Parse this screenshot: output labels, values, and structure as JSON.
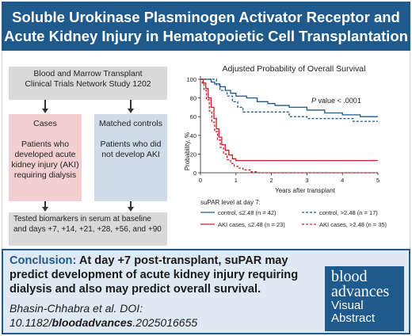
{
  "title": {
    "line1": "Soluble Urokinase Plasminogen Activator Receptor and",
    "line2": "Acute Kidney Injury in Hematopoietic Cell Transplantation"
  },
  "flow": {
    "study": {
      "line1": "Blood and Marrow Transplant",
      "line2": "Clinical Trials Network Study 1202"
    },
    "cases": {
      "heading": "Cases",
      "body": "Patients who developed acute kidney injury (AKI) requiring dialysis"
    },
    "controls": {
      "heading": "Matched controls",
      "body": "Patients who did not develop AKI"
    },
    "biomarkers": {
      "text": "Tested biomarkers in serum at baseline and days +7, +14, +21, +28, +56, and +90"
    }
  },
  "chart_data": {
    "type": "line",
    "title": "Adjusted Probability of Overall Survival",
    "xlabel": "Years after transplant",
    "ylabel": "Probability, %",
    "xlim": [
      0,
      5
    ],
    "ylim": [
      0,
      100
    ],
    "x_ticks": [
      0,
      1,
      2,
      3,
      4,
      5
    ],
    "y_ticks": [
      0,
      20,
      40,
      60,
      80,
      100
    ],
    "annotation": {
      "italic": "P",
      "rest": " value < .0001"
    },
    "legend_title": "suPAR level at day 7:",
    "series": [
      {
        "name": "control, ≤2.48 (n = 42)",
        "color": "#1f5a8c",
        "dash": false,
        "points": [
          [
            0,
            100
          ],
          [
            0.2,
            100
          ],
          [
            0.3,
            97
          ],
          [
            0.4,
            95
          ],
          [
            0.55,
            92
          ],
          [
            0.7,
            88
          ],
          [
            0.85,
            85
          ],
          [
            1.0,
            82
          ],
          [
            1.3,
            80
          ],
          [
            1.6,
            76
          ],
          [
            1.9,
            74
          ],
          [
            2.1,
            72
          ],
          [
            2.5,
            70
          ],
          [
            3.0,
            67
          ],
          [
            3.5,
            64
          ],
          [
            4.0,
            62
          ],
          [
            4.5,
            60
          ],
          [
            5.0,
            60
          ]
        ]
      },
      {
        "name": "control, >2.48 (n = 17)",
        "color": "#1f5a8c",
        "dash": true,
        "points": [
          [
            0,
            100
          ],
          [
            0.35,
            100
          ],
          [
            0.45,
            94
          ],
          [
            0.55,
            88
          ],
          [
            0.75,
            82
          ],
          [
            0.9,
            76
          ],
          [
            1.05,
            70
          ],
          [
            1.2,
            65
          ],
          [
            1.5,
            65
          ],
          [
            2.0,
            65
          ],
          [
            2.5,
            60
          ],
          [
            3.0,
            58
          ],
          [
            3.5,
            58
          ],
          [
            4.0,
            58
          ],
          [
            4.3,
            55
          ],
          [
            5.0,
            55
          ]
        ]
      },
      {
        "name": "AKI cases, ≤2.48 (n = 23)",
        "color": "#c8202a",
        "dash": false,
        "points": [
          [
            0,
            100
          ],
          [
            0.08,
            96
          ],
          [
            0.15,
            90
          ],
          [
            0.22,
            80
          ],
          [
            0.3,
            70
          ],
          [
            0.38,
            58
          ],
          [
            0.45,
            47
          ],
          [
            0.52,
            38
          ],
          [
            0.6,
            30
          ],
          [
            0.7,
            24
          ],
          [
            0.8,
            19
          ],
          [
            0.9,
            15
          ],
          [
            1.0,
            13
          ],
          [
            1.5,
            13
          ],
          [
            2.0,
            13
          ],
          [
            3.0,
            13
          ],
          [
            4.0,
            13
          ],
          [
            5.0,
            13
          ]
        ]
      },
      {
        "name": "AKI cases, >2.48 (n = 35)",
        "color": "#c8202a",
        "dash": true,
        "points": [
          [
            0,
            100
          ],
          [
            0.05,
            95
          ],
          [
            0.1,
            88
          ],
          [
            0.17,
            78
          ],
          [
            0.25,
            66
          ],
          [
            0.32,
            54
          ],
          [
            0.4,
            44
          ],
          [
            0.48,
            35
          ],
          [
            0.56,
            27
          ],
          [
            0.65,
            20
          ],
          [
            0.75,
            14
          ],
          [
            0.85,
            10
          ],
          [
            0.95,
            7
          ],
          [
            1.05,
            5
          ],
          [
            1.2,
            3
          ],
          [
            1.4,
            1
          ],
          [
            1.6,
            0
          ],
          [
            2.0,
            0
          ],
          [
            3.0,
            0
          ],
          [
            4.0,
            0
          ],
          [
            5.0,
            0
          ]
        ]
      }
    ]
  },
  "conclusion": {
    "lead": "Conclusion:",
    "text": " At day +7 post-transplant, suPAR may predict development of acute kidney injury requiring dialysis and also may predict overall survival."
  },
  "citation": {
    "authors": "Bhasin-Chhabra et al. DOI: 10.1182/",
    "journal": "bloodadvances",
    "rest": ".2025016655"
  },
  "brand": {
    "line1": "blood",
    "line2": "advances",
    "line3": "Visual",
    "line4": "Abstract"
  },
  "colors": {
    "navy": "#1f5a8c",
    "red": "#c8202a",
    "pink": "#f2cfd0",
    "lightblue": "#cfdbe8",
    "gray": "#d9d9d9"
  }
}
